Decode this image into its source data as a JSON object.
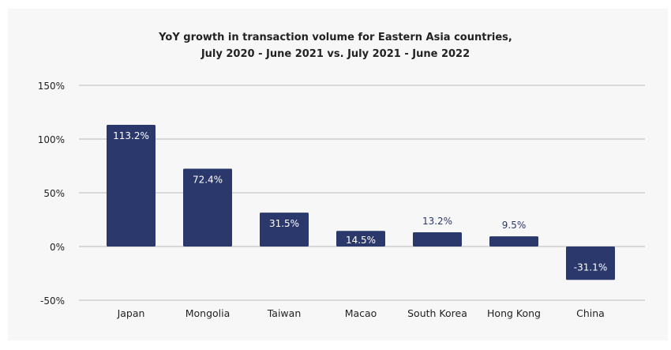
{
  "chart_data": {
    "type": "bar",
    "title": "YoY growth in transaction volume for Eastern Asia countries,",
    "subtitle": "July 2020 - June 2021 vs. July 2021 - June 2022",
    "categories": [
      "Japan",
      "Mongolia",
      "Taiwan",
      "Macao",
      "South Korea",
      "Hong Kong",
      "China"
    ],
    "values": [
      113.2,
      72.4,
      31.5,
      14.5,
      13.2,
      9.5,
      -31.1
    ],
    "data_labels": [
      "113.2%",
      "72.4%",
      "31.5%",
      "14.5%",
      "13.2%",
      "9.5%",
      "-31.1%"
    ],
    "xlabel": "",
    "ylabel": "",
    "ylim": [
      -50,
      150
    ],
    "yticks": [
      150,
      100,
      50,
      0,
      -50
    ],
    "ytick_labels": [
      "150%",
      "100%",
      "50%",
      "0%",
      "-50%"
    ],
    "grid": true,
    "legend": "none",
    "colors": {
      "bar": "#2b386b",
      "label_inside": "#ffffff",
      "label_outside": "#2b386b",
      "grid": "#d9d9d9",
      "background": "#f7f7f7"
    }
  }
}
